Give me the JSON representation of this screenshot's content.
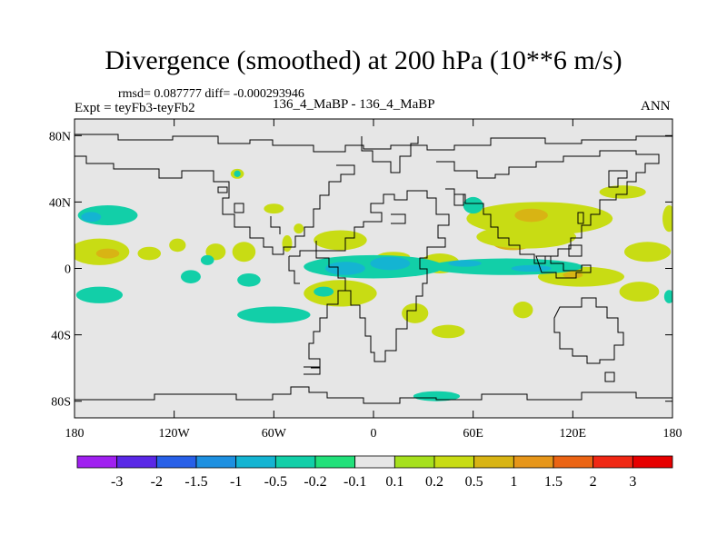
{
  "chart_data": {
    "type": "contour-map",
    "title": "Divergence (smoothed) at 200 hPa (10**6 m/s)",
    "stats_label": "rmsd= 0.087777 diff= -0.000293946",
    "left_label": "Expt = teyFb3-teyFb2",
    "center_label": "136_4_MaBP - 136_4_MaBP",
    "right_label": "ANN",
    "x_ticks": [
      {
        "value": -180,
        "label": "180"
      },
      {
        "value": -120,
        "label": "120W"
      },
      {
        "value": -60,
        "label": "60W"
      },
      {
        "value": 0,
        "label": "0"
      },
      {
        "value": 60,
        "label": "60E"
      },
      {
        "value": 120,
        "label": "120E"
      },
      {
        "value": 180,
        "label": "180"
      }
    ],
    "y_ticks": [
      {
        "value": 80,
        "label": "80N"
      },
      {
        "value": 40,
        "label": "40N"
      },
      {
        "value": 0,
        "label": "0"
      },
      {
        "value": -40,
        "label": "40S"
      },
      {
        "value": -80,
        "label": "80S"
      }
    ],
    "xlim": [
      -180,
      180
    ],
    "ylim": [
      -90,
      90
    ],
    "colorbar": {
      "labels": [
        "-3",
        "-2",
        "-1.5",
        "-1",
        "-0.5",
        "-0.2",
        "-0.1",
        "0.1",
        "0.2",
        "0.5",
        "1",
        "1.5",
        "2",
        "3"
      ],
      "colors": [
        "#a020f0",
        "#5a28e6",
        "#2860e8",
        "#1e90e0",
        "#14b4d2",
        "#12cfa8",
        "#22e07a",
        "#e6e6e6",
        "#a6e01e",
        "#c8dc14",
        "#d8b414",
        "#e6961a",
        "#eb6414",
        "#f02814",
        "#e60000"
      ]
    },
    "regions": [
      {
        "level": "0.2",
        "cx": -165,
        "cy": 10,
        "rx": 18,
        "ry": 8
      },
      {
        "level": "0.5",
        "cx": -160,
        "cy": 9,
        "rx": 7,
        "ry": 3
      },
      {
        "level": "0.2",
        "cx": -135,
        "cy": 9,
        "rx": 7,
        "ry": 4
      },
      {
        "level": "0.2",
        "cx": -118,
        "cy": 14,
        "rx": 5,
        "ry": 4
      },
      {
        "level": "0.2",
        "cx": -95,
        "cy": 10,
        "rx": 6,
        "ry": 5
      },
      {
        "level": "0.2",
        "cx": -78,
        "cy": 10,
        "rx": 7,
        "ry": 6
      },
      {
        "level": "0.2",
        "cx": -60,
        "cy": 36,
        "rx": 6,
        "ry": 3
      },
      {
        "level": "0.2",
        "cx": -82,
        "cy": 57,
        "rx": 4,
        "ry": 3
      },
      {
        "level": "0.2",
        "cx": -52,
        "cy": 15,
        "rx": 3,
        "ry": 5
      },
      {
        "level": "0.2",
        "cx": -45,
        "cy": 24,
        "rx": 3,
        "ry": 3
      },
      {
        "level": "0.2",
        "cx": -20,
        "cy": 17,
        "rx": 16,
        "ry": 6
      },
      {
        "level": "0.2",
        "cx": 40,
        "cy": 3,
        "rx": 12,
        "ry": 6
      },
      {
        "level": "0.2",
        "cx": 25,
        "cy": -27,
        "rx": 8,
        "ry": 6
      },
      {
        "level": "0.2",
        "cx": -20,
        "cy": -15,
        "rx": 22,
        "ry": 8
      },
      {
        "level": "0.2",
        "cx": 100,
        "cy": 30,
        "rx": 44,
        "ry": 10
      },
      {
        "level": "0.5",
        "cx": 95,
        "cy": 32,
        "rx": 10,
        "ry": 4
      },
      {
        "level": "0.5",
        "cx": 84,
        "cy": 15,
        "rx": 12,
        "ry": 4
      },
      {
        "level": "0.2",
        "cx": 92,
        "cy": 19,
        "rx": 30,
        "ry": 7
      },
      {
        "level": "0.2",
        "cx": 150,
        "cy": 46,
        "rx": 14,
        "ry": 4
      },
      {
        "level": "0.2",
        "cx": 165,
        "cy": 10,
        "rx": 14,
        "ry": 6
      },
      {
        "level": "0.2",
        "cx": 125,
        "cy": -5,
        "rx": 26,
        "ry": 6
      },
      {
        "level": "0.5",
        "cx": 120,
        "cy": -4,
        "rx": 6,
        "ry": 2
      },
      {
        "level": "0.2",
        "cx": 160,
        "cy": -14,
        "rx": 12,
        "ry": 6
      },
      {
        "level": "0.2",
        "cx": 90,
        "cy": -25,
        "rx": 6,
        "ry": 5
      },
      {
        "level": "0.2",
        "cx": 178,
        "cy": 30,
        "rx": 4,
        "ry": 8
      },
      {
        "level": "0.2",
        "cx": 45,
        "cy": -38,
        "rx": 10,
        "ry": 4
      },
      {
        "level": "0.2",
        "cx": 12,
        "cy": 7,
        "rx": 10,
        "ry": 3
      },
      {
        "level": "-0.2",
        "cx": -160,
        "cy": 32,
        "rx": 18,
        "ry": 6
      },
      {
        "level": "-0.5",
        "cx": -170,
        "cy": 31,
        "rx": 6,
        "ry": 3
      },
      {
        "level": "-0.2",
        "cx": -165,
        "cy": -16,
        "rx": 14,
        "ry": 5
      },
      {
        "level": "-0.2",
        "cx": -110,
        "cy": -5,
        "rx": 6,
        "ry": 4
      },
      {
        "level": "-0.2",
        "cx": -75,
        "cy": -7,
        "rx": 7,
        "ry": 4
      },
      {
        "level": "-0.2",
        "cx": -60,
        "cy": -28,
        "rx": 22,
        "ry": 5
      },
      {
        "level": "-0.2",
        "cx": -30,
        "cy": -14,
        "rx": 6,
        "ry": 3
      },
      {
        "level": "-0.2",
        "cx": 0,
        "cy": 1,
        "rx": 42,
        "ry": 7
      },
      {
        "level": "-0.5",
        "cx": -17,
        "cy": 0,
        "rx": 12,
        "ry": 4
      },
      {
        "level": "-0.5",
        "cx": 10,
        "cy": 3,
        "rx": 12,
        "ry": 4
      },
      {
        "level": "-0.2",
        "cx": 80,
        "cy": 1,
        "rx": 46,
        "ry": 5
      },
      {
        "level": "-0.5",
        "cx": 55,
        "cy": 3,
        "rx": 10,
        "ry": 2
      },
      {
        "level": "-0.5",
        "cx": 95,
        "cy": 0,
        "rx": 12,
        "ry": 2
      },
      {
        "level": "-0.2",
        "cx": 60,
        "cy": 38,
        "rx": 6,
        "ry": 5
      },
      {
        "level": "-0.2",
        "cx": -82,
        "cy": 57,
        "rx": 2,
        "ry": 2
      },
      {
        "level": "-0.2",
        "cx": 178,
        "cy": -17,
        "rx": 3,
        "ry": 4
      },
      {
        "level": "-0.2",
        "cx": 38,
        "cy": -77,
        "rx": 14,
        "ry": 3
      },
      {
        "level": "-0.2",
        "cx": -100,
        "cy": 5,
        "rx": 4,
        "ry": 3
      }
    ]
  }
}
